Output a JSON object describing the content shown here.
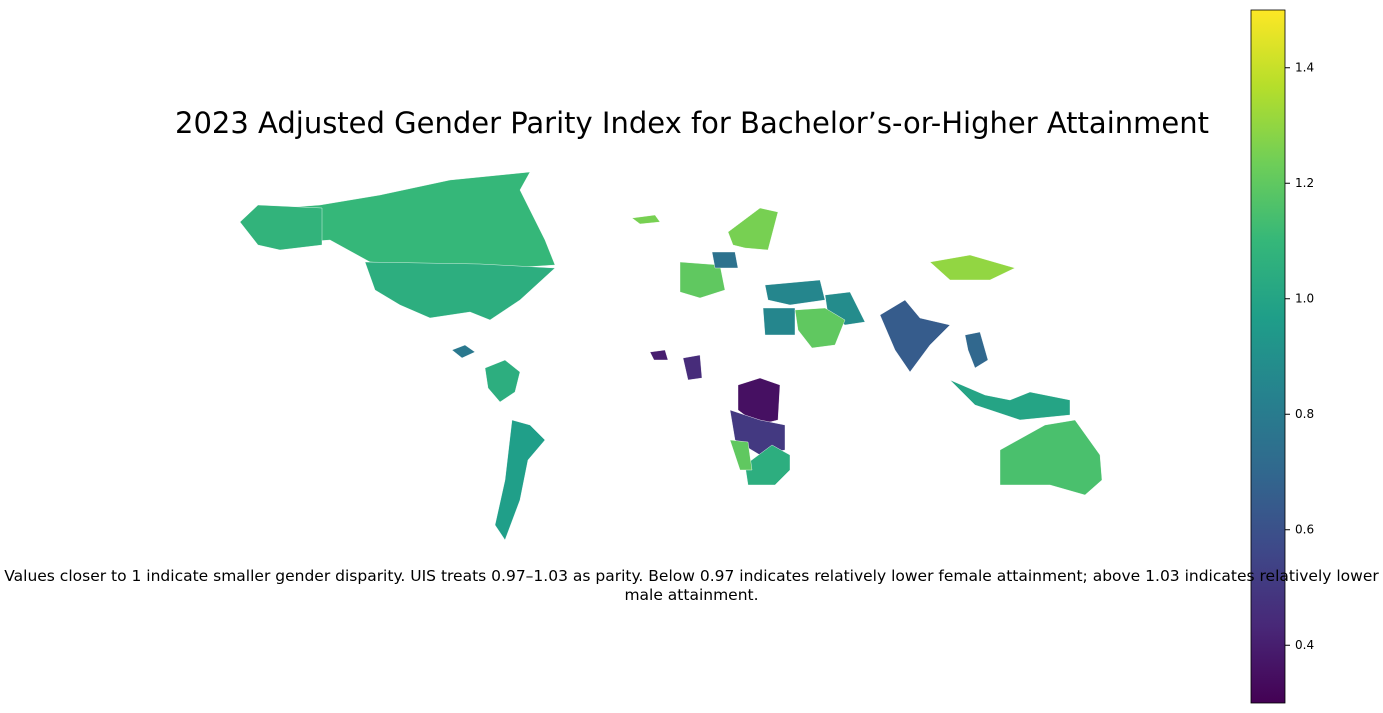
{
  "chart_data": {
    "type": "choropleth",
    "title": "2023 Adjusted Gender Parity Index for Bachelor’s-or-Higher Attainment",
    "caption": "Values closer to 1 indicate smaller gender disparity. UIS treats 0.97–1.03 as parity. Below 0.97 indicates relatively lower female attainment; above 1.03 indicates relatively lower male attainment.",
    "colormap": "viridis",
    "clim": [
      0.3,
      1.5
    ],
    "cticks": [
      0.4,
      0.6,
      0.8,
      {
        "value": 1,
        "label": "1.0"
      },
      1.2,
      1.4
    ],
    "values": [
      1.1,
      1.05,
      1.08,
      0.78,
      1.05,
      0.97,
      1.25,
      1.25,
      1.2,
      0.75,
      0.85,
      0.88,
      0.85,
      1.2,
      1.3,
      0.65,
      0.7,
      1.0,
      1.15,
      0.35,
      0.5,
      1.05,
      1.2,
      0.4,
      0.45
    ]
  }
}
